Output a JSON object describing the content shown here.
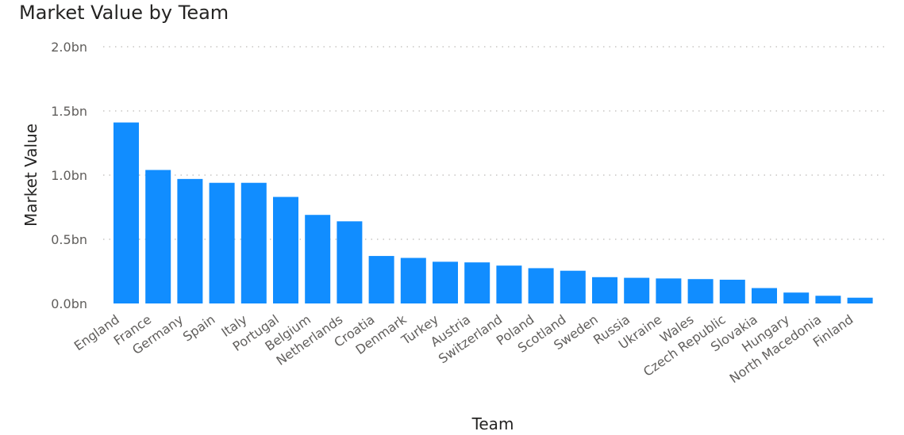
{
  "chart_data": {
    "type": "bar",
    "title": "Market Value by Team",
    "xlabel": "Team",
    "ylabel": "Market Value",
    "ylim": [
      0,
      2.0
    ],
    "y_ticks": [
      {
        "value": 0.0,
        "label": "0.0bn"
      },
      {
        "value": 0.5,
        "label": "0.5bn"
      },
      {
        "value": 1.0,
        "label": "1.0bn"
      },
      {
        "value": 1.5,
        "label": "1.5bn"
      },
      {
        "value": 2.0,
        "label": "2.0bn"
      }
    ],
    "grid": true,
    "bar_color": "#118DFF",
    "categories": [
      "England",
      "France",
      "Germany",
      "Spain",
      "Italy",
      "Portugal",
      "Belgium",
      "Netherlands",
      "Croatia",
      "Denmark",
      "Turkey",
      "Austria",
      "Switzerland",
      "Poland",
      "Scotland",
      "Sweden",
      "Russia",
      "Ukraine",
      "Wales",
      "Czech Republic",
      "Slovakia",
      "Hungary",
      "North Macedonia",
      "Finland"
    ],
    "values": [
      1.41,
      1.04,
      0.97,
      0.94,
      0.94,
      0.83,
      0.69,
      0.64,
      0.37,
      0.355,
      0.325,
      0.32,
      0.295,
      0.275,
      0.255,
      0.205,
      0.2,
      0.195,
      0.19,
      0.185,
      0.12,
      0.085,
      0.06,
      0.045
    ]
  }
}
